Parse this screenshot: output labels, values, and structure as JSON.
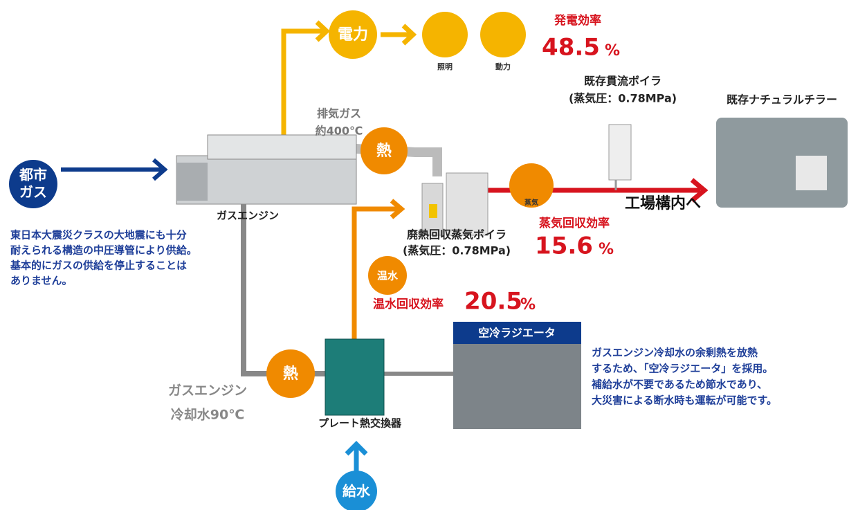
{
  "power": {
    "label": "電力",
    "lighting": "照明",
    "motive": "動力",
    "efficiency_label": "発電効率",
    "efficiency_value": "48.5",
    "unit": "%"
  },
  "existing_boiler": {
    "name": "既存貫流ボイラ",
    "pressure": "(蒸気圧：0.78MPa)"
  },
  "existing_chiller": {
    "name": "既存ナチュラルチラー"
  },
  "exhaust": {
    "line1": "排気ガス",
    "line2": "約400℃",
    "heat": "熱"
  },
  "city_gas": {
    "line1": "都市",
    "line2": "ガス"
  },
  "gas_engine": {
    "label": "ガスエンジン"
  },
  "waste_heat_boiler": {
    "name": "廃熱回収蒸気ボイラ",
    "pressure": "(蒸気圧：0.78MPa)"
  },
  "steam": {
    "label": "蒸気",
    "destination": "工場構内へ",
    "efficiency_label": "蒸気回収効率",
    "efficiency_value": "15.6",
    "unit": "%"
  },
  "gas_note": {
    "lines": [
      "東日本大震災クラスの大地震にも十分",
      "耐えられる構造の中圧導管により供給。",
      "基本的にガスの供給を停止することは",
      "ありません。"
    ]
  },
  "hot_water": {
    "label": "温水",
    "efficiency_label": "温水回収効率",
    "efficiency_value": "20.5",
    "unit": "%"
  },
  "radiator": {
    "title": "空冷ラジエータ",
    "lines": [
      "ガスエンジン冷却水の余剰熱を放熱",
      "するため、「空冷ラジエータ」を採用。",
      "補給水が不要であるため節水であり、",
      "大災害による断水時も運転が可能です。"
    ]
  },
  "coolant": {
    "line1": "ガスエンジン",
    "line2": "冷却水90℃",
    "heat": "熱"
  },
  "plate_exchanger": {
    "label": "プレート熱交換器"
  },
  "water_supply": {
    "label": "給水"
  }
}
